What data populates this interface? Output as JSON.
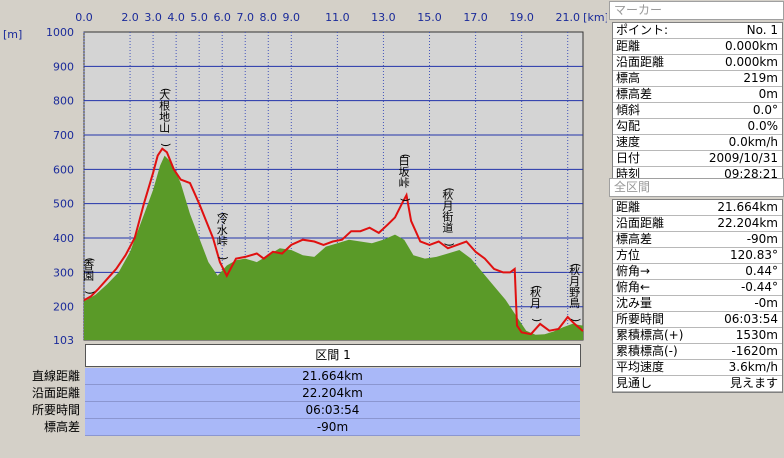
{
  "chart_data": {
    "type": "area",
    "xlabel": "",
    "ylabel": "",
    "x_unit": "[km]",
    "y_unit": "[m]",
    "xlim": [
      0,
      21.664
    ],
    "ylim": [
      103,
      1000
    ],
    "xticks": [
      0.0,
      2.0,
      3.0,
      4.0,
      5.0,
      6.0,
      7.0,
      8.0,
      9.0,
      11.0,
      13.0,
      15.0,
      17.0,
      19.0,
      21.0
    ],
    "xtick_labels": [
      "0.0",
      "2.0",
      "3.0",
      "4.0",
      "5.0",
      "6.0",
      "7.0",
      "8.0",
      "9.0",
      "11.0",
      "13.0",
      "15.0",
      "17.0",
      "19.0",
      "21.0"
    ],
    "yticks": [
      103,
      200,
      300,
      400,
      500,
      600,
      700,
      800,
      900,
      1000
    ],
    "grid": true,
    "series": [
      {
        "style": "filled-area",
        "color": "#5a9a28",
        "x": [
          0.0,
          0.5,
          1.0,
          1.5,
          2.0,
          2.5,
          3.0,
          3.3,
          3.5,
          3.8,
          4.2,
          4.6,
          5.0,
          5.4,
          5.8,
          6.2,
          6.6,
          7.0,
          7.5,
          8.0,
          8.5,
          9.0,
          9.5,
          10.0,
          10.5,
          11.0,
          11.5,
          12.0,
          12.5,
          13.0,
          13.5,
          13.9,
          14.3,
          14.8,
          15.3,
          15.8,
          16.3,
          16.8,
          17.3,
          17.8,
          18.3,
          18.8,
          19.2,
          19.6,
          20.0,
          20.4,
          20.8,
          21.2,
          21.664
        ],
        "y": [
          215,
          235,
          265,
          300,
          360,
          450,
          540,
          610,
          640,
          620,
          560,
          470,
          400,
          330,
          290,
          320,
          335,
          340,
          330,
          350,
          370,
          365,
          350,
          345,
          375,
          385,
          395,
          390,
          385,
          395,
          410,
          395,
          350,
          340,
          345,
          355,
          365,
          340,
          300,
          260,
          220,
          170,
          130,
          118,
          120,
          128,
          140,
          150,
          145
        ]
      },
      {
        "style": "line",
        "color": "#e01010",
        "x": [
          0.0,
          0.3,
          0.6,
          1.0,
          1.4,
          1.8,
          2.2,
          2.6,
          3.0,
          3.2,
          3.4,
          3.6,
          3.9,
          4.2,
          4.6,
          5.0,
          5.3,
          5.6,
          5.9,
          6.2,
          6.6,
          7.0,
          7.5,
          7.8,
          8.2,
          8.6,
          9.0,
          9.5,
          10.0,
          10.4,
          10.8,
          11.2,
          11.6,
          12.0,
          12.4,
          12.8,
          13.2,
          13.5,
          13.8,
          14.0,
          14.2,
          14.6,
          15.0,
          15.4,
          15.8,
          16.2,
          16.6,
          17.0,
          17.4,
          17.8,
          18.2,
          18.5,
          18.7,
          18.8,
          19.0,
          19.4,
          19.8,
          20.2,
          20.6,
          21.0,
          21.3,
          21.664
        ],
        "y": [
          219,
          230,
          250,
          280,
          310,
          350,
          400,
          500,
          590,
          640,
          660,
          650,
          600,
          570,
          560,
          500,
          450,
          400,
          330,
          290,
          340,
          345,
          355,
          340,
          360,
          355,
          380,
          395,
          390,
          380,
          390,
          395,
          420,
          420,
          430,
          415,
          440,
          460,
          500,
          525,
          450,
          390,
          380,
          390,
          370,
          380,
          390,
          360,
          340,
          310,
          300,
          300,
          310,
          145,
          125,
          120,
          150,
          130,
          135,
          170,
          150,
          129
        ]
      }
    ],
    "annotations": [
      {
        "x": 0.2,
        "text": "(香園)"
      },
      {
        "x": 3.5,
        "text": "(大根地山)"
      },
      {
        "x": 6.0,
        "text": "(冷水峠)"
      },
      {
        "x": 13.9,
        "text": "(白坂峠)"
      },
      {
        "x": 15.8,
        "text": "(秋月街道)"
      },
      {
        "x": 19.6,
        "text": "(秋月)"
      },
      {
        "x": 21.3,
        "text": "(秋月野鳥)"
      }
    ]
  },
  "section_table": {
    "header": "区間 1",
    "rows": [
      {
        "label": "直線距離",
        "value": "21.664km"
      },
      {
        "label": "沿面距離",
        "value": "22.204km"
      },
      {
        "label": "所要時間",
        "value": "06:03:54"
      },
      {
        "label": "標高差",
        "value": "-90m"
      }
    ]
  },
  "marker_panel": {
    "title": "マーカー",
    "rows": [
      {
        "key": "ポイント:",
        "value": "No. 1"
      },
      {
        "key": "距離",
        "value": "0.000km"
      },
      {
        "key": "沿面距離",
        "value": "0.000km"
      },
      {
        "key": "標高",
        "value": "219m"
      },
      {
        "key": "標高差",
        "value": "0m"
      },
      {
        "key": "傾斜",
        "value": "0.0°"
      },
      {
        "key": "勾配",
        "value": "0.0%"
      },
      {
        "key": "速度",
        "value": "0.0km/h"
      },
      {
        "key": "日付",
        "value": "2009/10/31"
      },
      {
        "key": "時刻",
        "value": "09:28:21"
      }
    ]
  },
  "total_panel": {
    "title": "全区間",
    "rows": [
      {
        "key": "距離",
        "value": "21.664km"
      },
      {
        "key": "沿面距離",
        "value": "22.204km"
      },
      {
        "key": "標高差",
        "value": "-90m"
      },
      {
        "key": "方位",
        "value": "120.83°"
      },
      {
        "key": "俯角→",
        "value": "0.44°"
      },
      {
        "key": "俯角←",
        "value": "-0.44°"
      },
      {
        "key": "沈み量",
        "value": "-0m"
      },
      {
        "key": "所要時間",
        "value": "06:03:54"
      },
      {
        "key": "累積標高(+)",
        "value": "1530m"
      },
      {
        "key": "累積標高(-)",
        "value": "-1620m"
      },
      {
        "key": "平均速度",
        "value": "3.6km/h"
      },
      {
        "key": "見通し",
        "value": "見えます"
      }
    ]
  }
}
